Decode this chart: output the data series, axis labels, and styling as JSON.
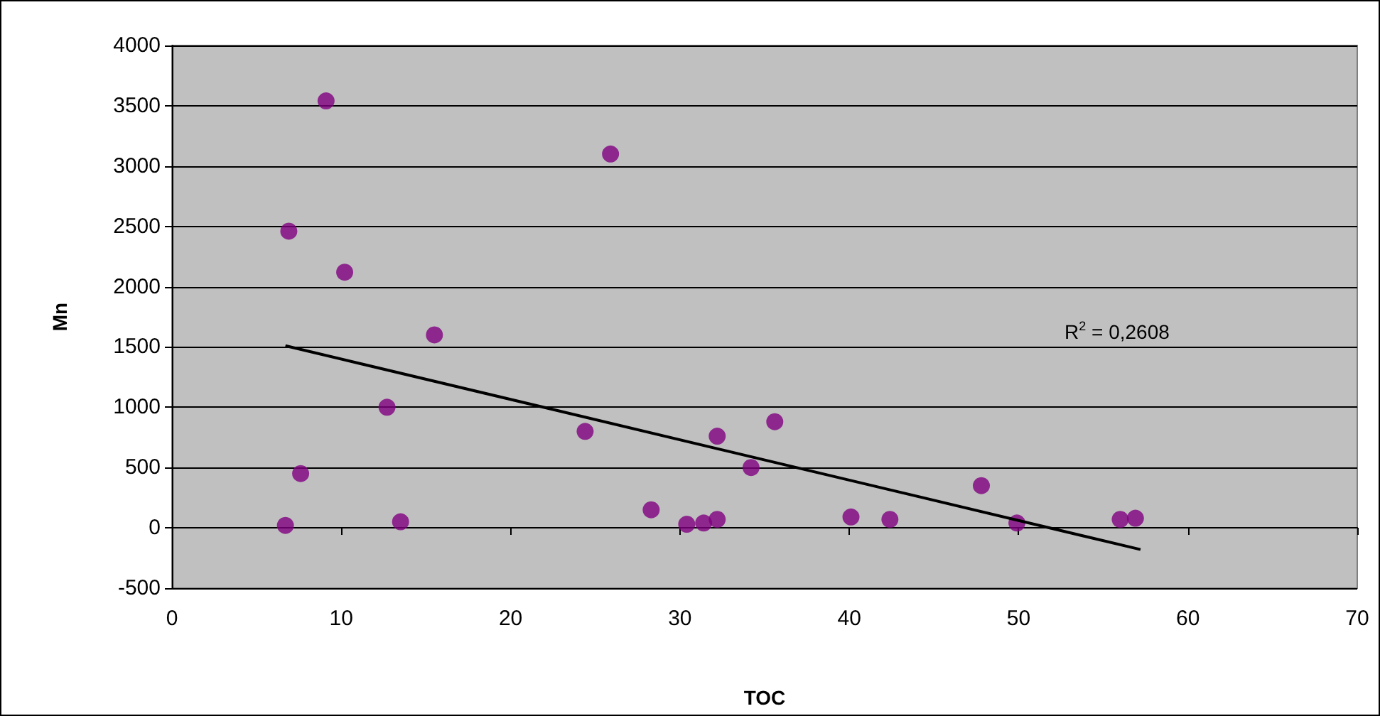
{
  "chart_data": {
    "type": "scatter",
    "xlabel": "TOC",
    "ylabel": "Mn",
    "xlim": [
      0,
      70
    ],
    "xticks": [
      0,
      10,
      20,
      30,
      40,
      50,
      60,
      70
    ],
    "ylim": [
      -500,
      4000
    ],
    "yticks": [
      -500,
      0,
      500,
      1000,
      1500,
      2000,
      2500,
      3000,
      3500,
      4000
    ],
    "grid": "y",
    "marker": "circle",
    "annotations": [
      "R$^{2}$ = 0,2608"
    ],
    "series": [
      {
        "color": "#800080",
        "x": [
          9.1,
          6.9,
          10.2,
          15.5,
          25.9,
          6.7,
          7.6,
          12.7,
          13.5,
          24.4,
          28.3,
          30.4,
          31.4,
          32.2,
          32.2,
          34.2,
          35.6,
          40.1,
          42.4,
          47.8,
          49.9,
          56.0,
          56.9
        ],
        "values": [
          3540,
          2460,
          2120,
          1600,
          3100,
          20,
          450,
          1000,
          50,
          800,
          150,
          30,
          40,
          70,
          760,
          500,
          880,
          90,
          70,
          350,
          40,
          70,
          80
        ]
      },
      {
        "type": "line",
        "color": "#000000",
        "marker": "none",
        "line_style": "solid",
        "x": [
          6.7,
          57.2
        ],
        "values": [
          1510,
          -180
        ]
      }
    ]
  }
}
